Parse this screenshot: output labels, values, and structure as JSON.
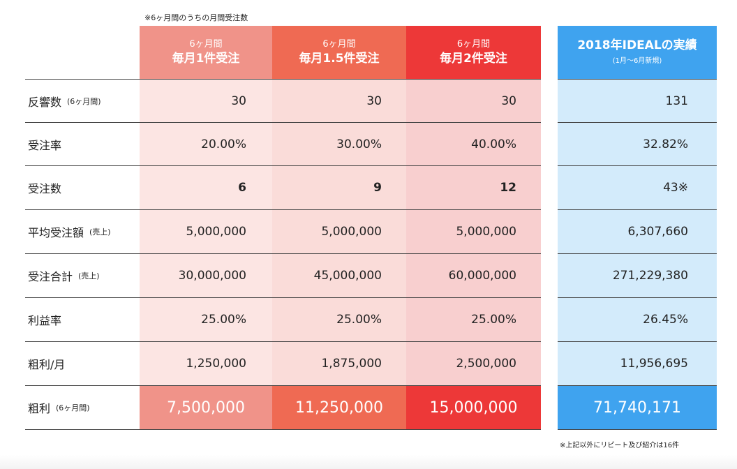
{
  "notes": {
    "top": "※6ヶ月間のうちの月間受注数",
    "bottom": "※上記以外にリピート及び紹介は16件"
  },
  "colors": {
    "col1_header": "#f09389",
    "col2_header": "#ef6a53",
    "col3_header": "#ed3838",
    "col4_header": "#3fa3ef",
    "col1_body": "#fce5e3",
    "col2_body": "#fadcd9",
    "col3_body": "#f8cfcf",
    "col4_body": "#d3ebfb"
  },
  "headers": [
    {
      "line1": "6ヶ月間",
      "line2": "毎月1件受注"
    },
    {
      "line1": "6ヶ月間",
      "line2": "毎月1.5件受注"
    },
    {
      "line1": "6ヶ月間",
      "line2": "毎月2件受注"
    },
    {
      "line1": "2018年IDEALの実績",
      "line2": "(1月〜6月新規)"
    }
  ],
  "rows": [
    {
      "label": "反響数",
      "sub": "(6ヶ月間)",
      "values": [
        "30",
        "30",
        "30",
        "131"
      ]
    },
    {
      "label": "受注率",
      "sub": "",
      "values": [
        "20.00%",
        "30.00%",
        "40.00%",
        "32.82%"
      ]
    },
    {
      "label": "受注数",
      "sub": "",
      "values": [
        "6",
        "9",
        "12",
        "43※"
      ]
    },
    {
      "label": "平均受注額",
      "sub": "(売上)",
      "values": [
        "5,000,000",
        "5,000,000",
        "5,000,000",
        "6,307,660"
      ]
    },
    {
      "label": "受注合計",
      "sub": "(売上)",
      "values": [
        "30,000,000",
        "45,000,000",
        "60,000,000",
        "271,229,380"
      ]
    },
    {
      "label": "利益率",
      "sub": "",
      "values": [
        "25.00%",
        "25.00%",
        "25.00%",
        "26.45%"
      ]
    },
    {
      "label": "粗利/月",
      "sub": "",
      "values": [
        "1,250,000",
        "1,875,000",
        "2,500,000",
        "11,956,695"
      ]
    },
    {
      "label": "粗利",
      "sub": "(6ヶ月間)",
      "values": [
        "7,500,000",
        "11,250,000",
        "15,000,000",
        "71,740,171"
      ]
    }
  ]
}
